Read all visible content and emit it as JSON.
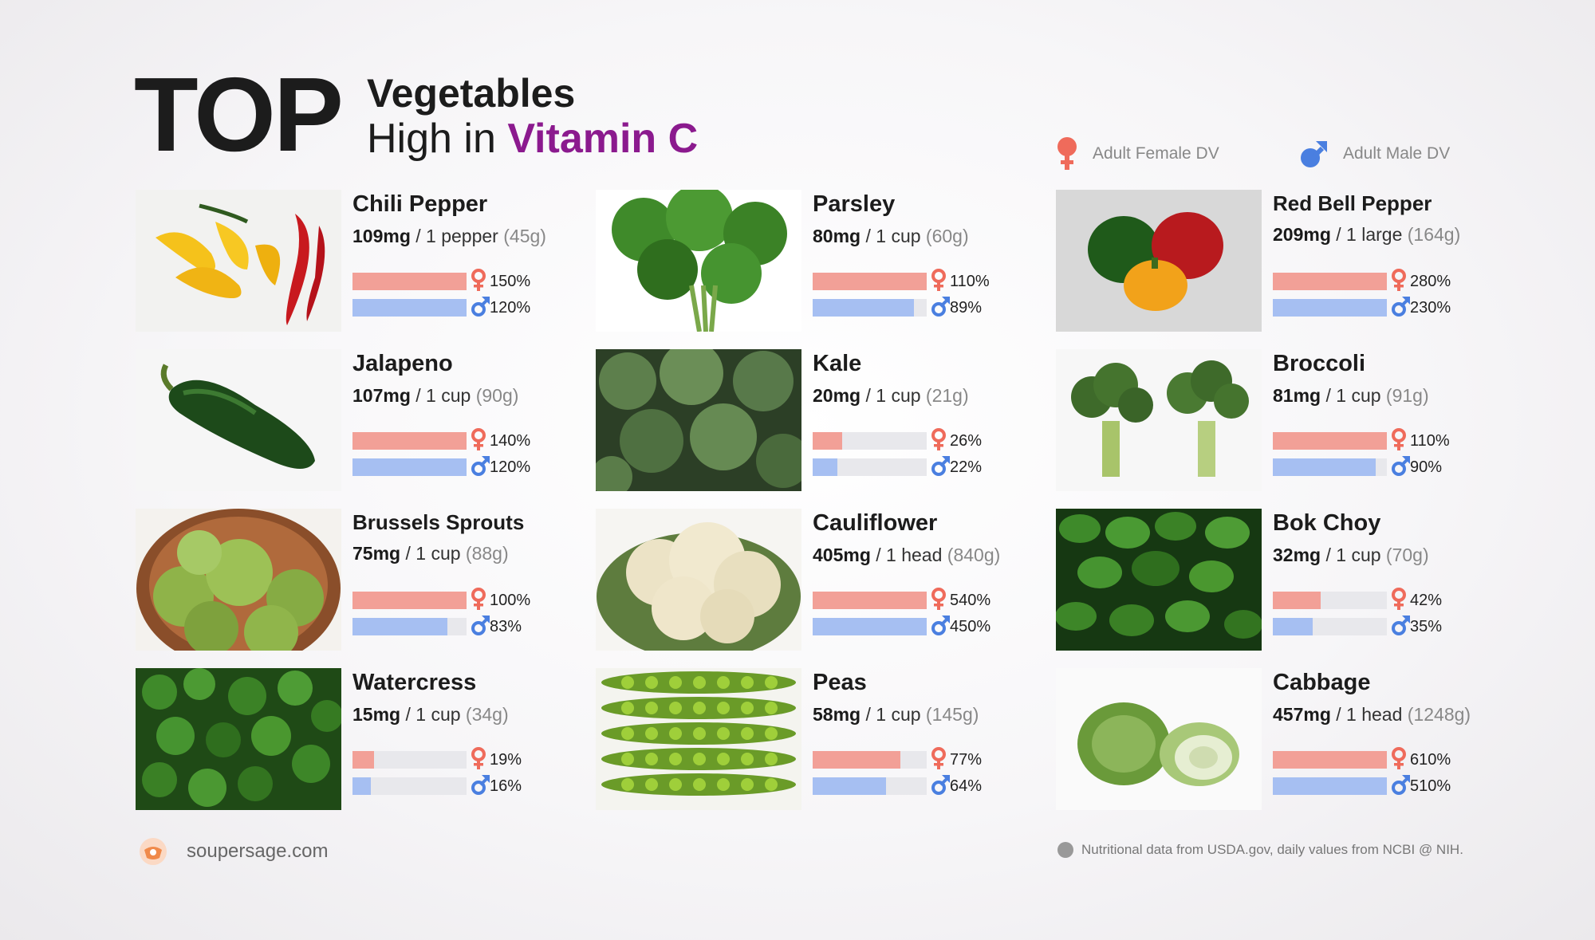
{
  "header": {
    "top": "TOP",
    "line1": "Vegetables",
    "line2_prefix": "High in ",
    "line2_accent": "Vitamin C"
  },
  "legend": {
    "female": "Adult Female DV",
    "male": "Adult Male DV"
  },
  "colors": {
    "accent": "#8b1a8e",
    "female": "#f2a097",
    "male": "#a6bff2",
    "female_symbol": "#ef6b5b",
    "male_symbol": "#4a7fe0"
  },
  "items": [
    {
      "name": "Chili Pepper",
      "mg": "109mg",
      "unit": "/ 1 pepper",
      "gram": "(45g)",
      "female_pct": "150%",
      "male_pct": "120%",
      "female_value": 150,
      "male_value": 120,
      "icon": "chili-pepper-photo"
    },
    {
      "name": "Jalapeno",
      "mg": "107mg",
      "unit": "/ 1 cup",
      "gram": "(90g)",
      "female_pct": "140%",
      "male_pct": "120%",
      "female_value": 140,
      "male_value": 120,
      "icon": "jalapeno-photo"
    },
    {
      "name": "Brussels Sprouts",
      "mg": "75mg",
      "unit": "/ 1 cup",
      "gram": "(88g)",
      "female_pct": "100%",
      "male_pct": "83%",
      "female_value": 100,
      "male_value": 83,
      "icon": "brussels-sprouts-photo"
    },
    {
      "name": "Watercress",
      "mg": "15mg",
      "unit": "/ 1 cup",
      "gram": "(34g)",
      "female_pct": "19%",
      "male_pct": "16%",
      "female_value": 19,
      "male_value": 16,
      "icon": "watercress-photo"
    },
    {
      "name": "Parsley",
      "mg": "80mg",
      "unit": "/ 1 cup",
      "gram": "(60g)",
      "female_pct": "110%",
      "male_pct": "89%",
      "female_value": 110,
      "male_value": 89,
      "icon": "parsley-photo"
    },
    {
      "name": "Kale",
      "mg": "20mg",
      "unit": "/ 1 cup",
      "gram": "(21g)",
      "female_pct": "26%",
      "male_pct": "22%",
      "female_value": 26,
      "male_value": 22,
      "icon": "kale-photo"
    },
    {
      "name": "Cauliflower",
      "mg": "405mg",
      "unit": "/ 1 head",
      "gram": "(840g)",
      "female_pct": "540%",
      "male_pct": "450%",
      "female_value": 540,
      "male_value": 450,
      "icon": "cauliflower-photo"
    },
    {
      "name": "Peas",
      "mg": "58mg",
      "unit": "/ 1 cup",
      "gram": "(145g)",
      "female_pct": "77%",
      "male_pct": "64%",
      "female_value": 77,
      "male_value": 64,
      "icon": "peas-photo"
    },
    {
      "name": "Red Bell Pepper",
      "mg": "209mg",
      "unit": "/ 1 large",
      "gram": "(164g)",
      "female_pct": "280%",
      "male_pct": "230%",
      "female_value": 280,
      "male_value": 230,
      "icon": "bell-pepper-photo"
    },
    {
      "name": "Broccoli",
      "mg": "81mg",
      "unit": "/ 1 cup",
      "gram": "(91g)",
      "female_pct": "110%",
      "male_pct": "90%",
      "female_value": 110,
      "male_value": 90,
      "icon": "broccoli-photo"
    },
    {
      "name": "Bok Choy",
      "mg": "32mg",
      "unit": "/ 1 cup",
      "gram": "(70g)",
      "female_pct": "42%",
      "male_pct": "35%",
      "female_value": 42,
      "male_value": 35,
      "icon": "bok-choy-photo"
    },
    {
      "name": "Cabbage",
      "mg": "457mg",
      "unit": "/ 1 head",
      "gram": "(1248g)",
      "female_pct": "610%",
      "male_pct": "510%",
      "female_value": 610,
      "male_value": 510,
      "icon": "cabbage-photo"
    }
  ],
  "footer": {
    "site": "soupersage.com",
    "source": "Nutritional data from USDA.gov, daily values from NCBI @ NIH."
  }
}
